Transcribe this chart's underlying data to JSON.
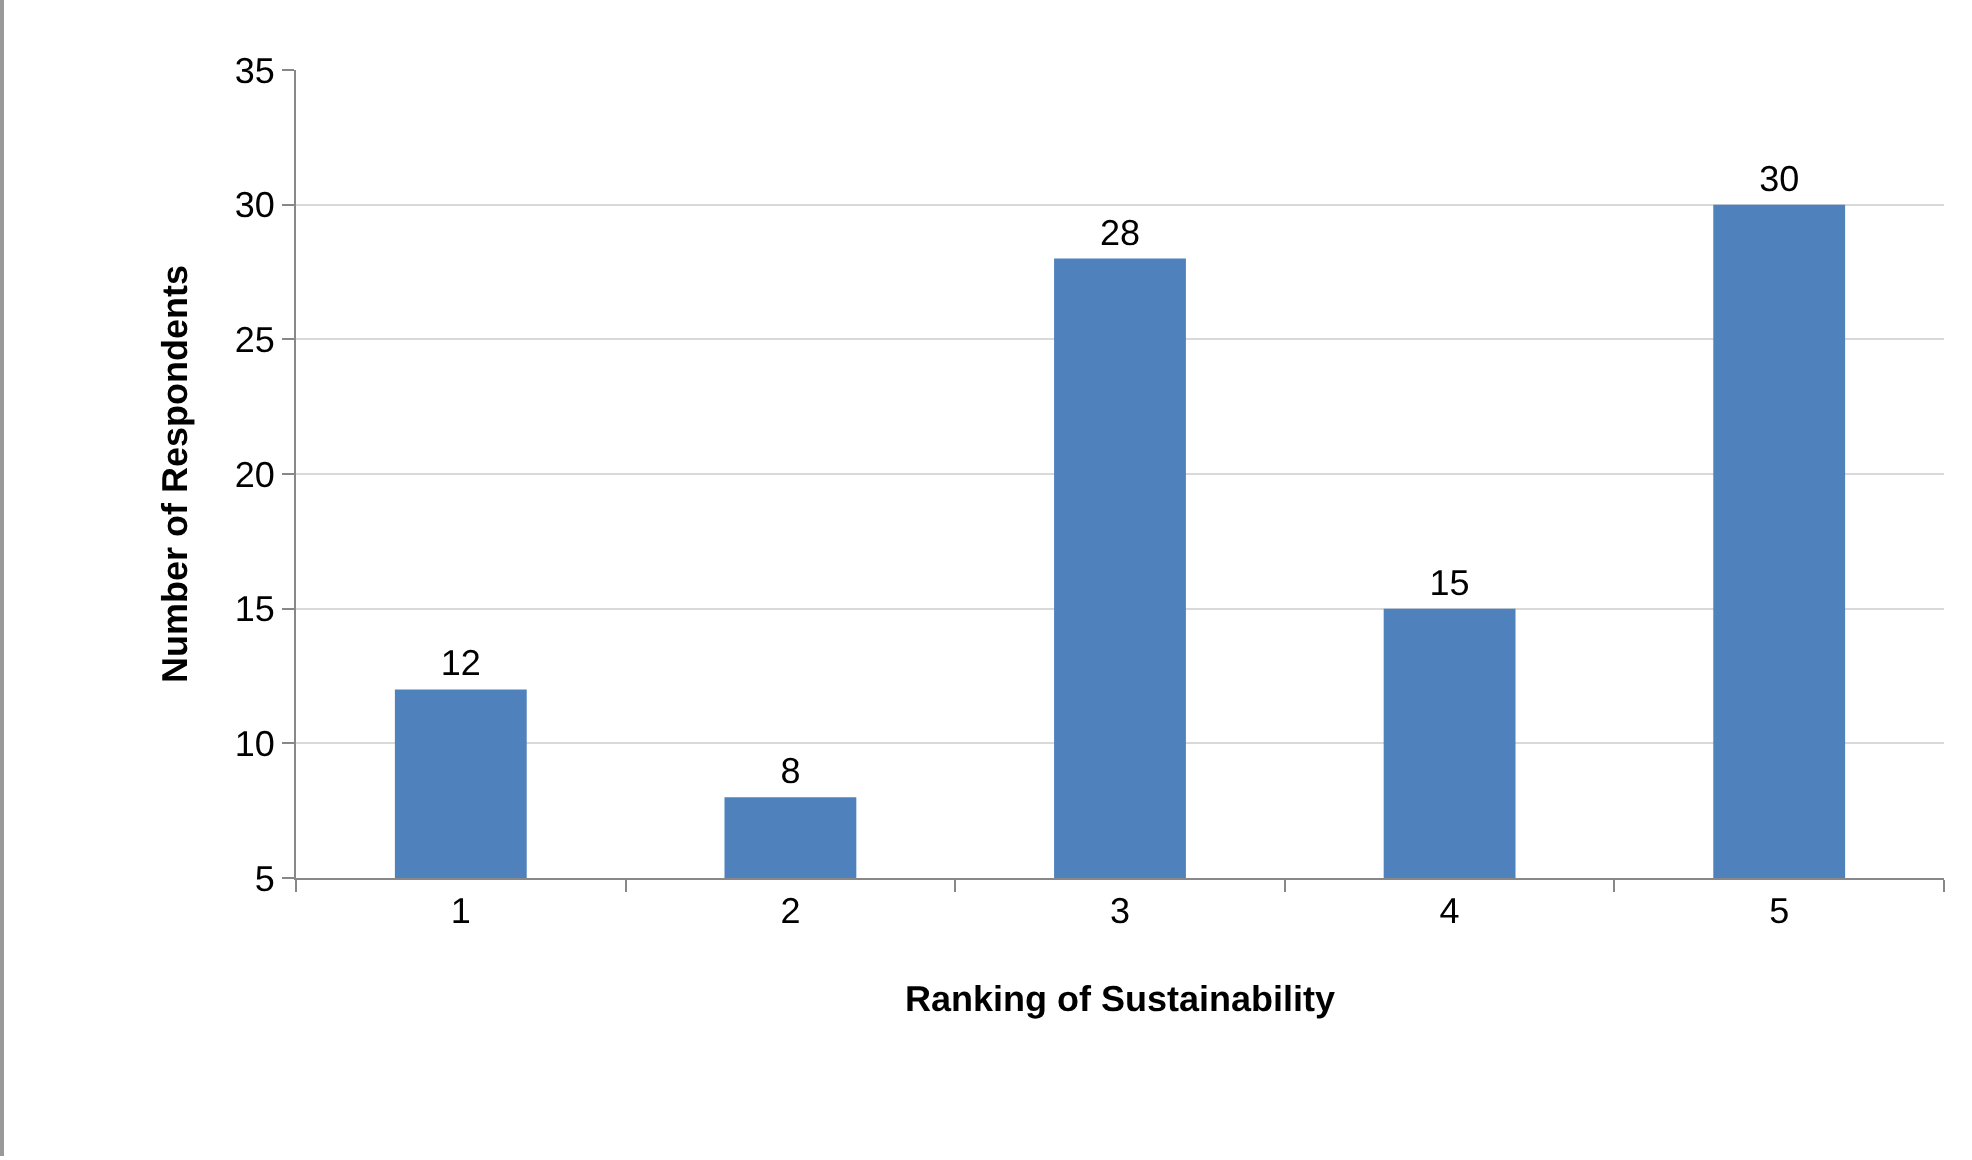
{
  "chart_data": {
    "type": "bar",
    "xlabel": "Ranking of Sustainability",
    "ylabel": "Number of Respondents",
    "categories": [
      "1",
      "2",
      "3",
      "4",
      "5"
    ],
    "values": [
      12,
      8,
      28,
      15,
      30
    ],
    "color": "#4f81bd",
    "ylim": [
      5,
      35
    ],
    "yticks": [
      5,
      10,
      15,
      20,
      25,
      30,
      35
    ],
    "grid": "y",
    "data_labels": true,
    "legend": false
  }
}
